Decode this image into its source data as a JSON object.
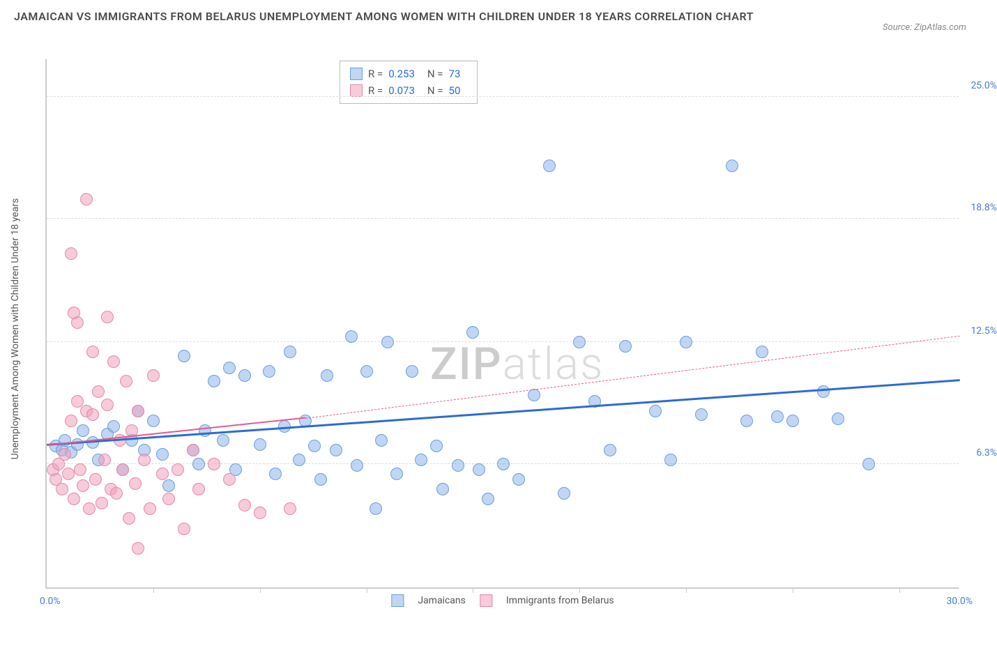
{
  "title": "JAMAICAN VS IMMIGRANTS FROM BELARUS UNEMPLOYMENT AMONG WOMEN WITH CHILDREN UNDER 18 YEARS CORRELATION CHART",
  "source": "Source: ZipAtlas.com",
  "watermark": {
    "part1": "ZIP",
    "part2": "atlas"
  },
  "chart": {
    "type": "scatter",
    "ylabel": "Unemployment Among Women with Children Under 18 years",
    "xlim": [
      0,
      30
    ],
    "ylim": [
      0,
      27
    ],
    "yticks": [
      {
        "v": 6.3,
        "label": "6.3%"
      },
      {
        "v": 12.5,
        "label": "12.5%"
      },
      {
        "v": 18.8,
        "label": "18.8%"
      },
      {
        "v": 25.0,
        "label": "25.0%"
      }
    ],
    "xticks_marks": [
      3.5,
      7,
      10.5,
      14,
      17.5,
      21,
      24.5,
      28
    ],
    "xtick_min": "0.0%",
    "xtick_max": "30.0%",
    "background_color": "#ffffff",
    "grid_color": "#dddddd",
    "marker_radius": 9,
    "series": [
      {
        "name": "Jamaicans",
        "fill": "rgba(140,180,235,0.55)",
        "stroke": "#6a9fd8",
        "R": "0.253",
        "N": "73",
        "trend": {
          "x1": 0,
          "y1": 7.2,
          "x2": 30,
          "y2": 10.5,
          "color": "#2b6cd4",
          "width": 3,
          "dash": "none"
        },
        "trend_ext": null,
        "points": [
          [
            0.3,
            7.2
          ],
          [
            0.5,
            7.0
          ],
          [
            0.6,
            7.5
          ],
          [
            0.8,
            6.9
          ],
          [
            1.0,
            7.3
          ],
          [
            1.2,
            8.0
          ],
          [
            1.5,
            7.4
          ],
          [
            1.7,
            6.5
          ],
          [
            2.0,
            7.8
          ],
          [
            2.2,
            8.2
          ],
          [
            2.5,
            6.0
          ],
          [
            2.8,
            7.5
          ],
          [
            3.0,
            9.0
          ],
          [
            3.2,
            7.0
          ],
          [
            3.5,
            8.5
          ],
          [
            3.8,
            6.8
          ],
          [
            4.0,
            5.2
          ],
          [
            4.5,
            11.8
          ],
          [
            4.8,
            7.0
          ],
          [
            5.0,
            6.3
          ],
          [
            5.2,
            8.0
          ],
          [
            5.5,
            10.5
          ],
          [
            5.8,
            7.5
          ],
          [
            6.0,
            11.2
          ],
          [
            6.2,
            6.0
          ],
          [
            6.5,
            10.8
          ],
          [
            7.0,
            7.3
          ],
          [
            7.3,
            11.0
          ],
          [
            7.5,
            5.8
          ],
          [
            7.8,
            8.2
          ],
          [
            8.0,
            12.0
          ],
          [
            8.3,
            6.5
          ],
          [
            8.5,
            8.5
          ],
          [
            8.8,
            7.2
          ],
          [
            9.0,
            5.5
          ],
          [
            9.2,
            10.8
          ],
          [
            9.5,
            7.0
          ],
          [
            10.0,
            12.8
          ],
          [
            10.2,
            6.2
          ],
          [
            10.5,
            11.0
          ],
          [
            10.8,
            4.0
          ],
          [
            11.0,
            7.5
          ],
          [
            11.2,
            12.5
          ],
          [
            11.5,
            5.8
          ],
          [
            12.0,
            11.0
          ],
          [
            12.3,
            6.5
          ],
          [
            12.8,
            7.2
          ],
          [
            13.0,
            5.0
          ],
          [
            13.5,
            6.2
          ],
          [
            14.0,
            13.0
          ],
          [
            14.2,
            6.0
          ],
          [
            14.5,
            4.5
          ],
          [
            15.0,
            6.3
          ],
          [
            15.5,
            5.5
          ],
          [
            16.0,
            9.8
          ],
          [
            16.5,
            21.5
          ],
          [
            17.0,
            4.8
          ],
          [
            17.5,
            12.5
          ],
          [
            18.0,
            9.5
          ],
          [
            18.5,
            7.0
          ],
          [
            19.0,
            12.3
          ],
          [
            20.0,
            9.0
          ],
          [
            20.5,
            6.5
          ],
          [
            21.0,
            12.5
          ],
          [
            21.5,
            8.8
          ],
          [
            22.5,
            21.5
          ],
          [
            23.0,
            8.5
          ],
          [
            23.5,
            12.0
          ],
          [
            24.0,
            8.7
          ],
          [
            24.5,
            8.5
          ],
          [
            25.5,
            10.0
          ],
          [
            27.0,
            6.3
          ],
          [
            26.0,
            8.6
          ]
        ]
      },
      {
        "name": "Immigrants from Belarus",
        "fill": "rgba(240,160,185,0.55)",
        "stroke": "#e28aa8",
        "R": "0.073",
        "N": "50",
        "trend": {
          "x1": 0,
          "y1": 7.2,
          "x2": 8.5,
          "y2": 8.6,
          "color": "#e55a8a",
          "width": 2,
          "dash": "none"
        },
        "trend_ext": {
          "x1": 8.5,
          "y1": 8.6,
          "x2": 30,
          "y2": 12.8,
          "color": "#e55a8a",
          "width": 1,
          "dash": "4,4"
        },
        "points": [
          [
            0.2,
            6.0
          ],
          [
            0.3,
            5.5
          ],
          [
            0.4,
            6.3
          ],
          [
            0.5,
            5.0
          ],
          [
            0.6,
            6.8
          ],
          [
            0.7,
            5.8
          ],
          [
            0.8,
            8.5
          ],
          [
            0.9,
            4.5
          ],
          [
            1.0,
            9.5
          ],
          [
            1.1,
            6.0
          ],
          [
            1.2,
            5.2
          ],
          [
            1.3,
            9.0
          ],
          [
            1.4,
            4.0
          ],
          [
            1.5,
            8.8
          ],
          [
            1.6,
            5.5
          ],
          [
            1.7,
            10.0
          ],
          [
            1.8,
            4.3
          ],
          [
            1.9,
            6.5
          ],
          [
            2.0,
            9.3
          ],
          [
            2.1,
            5.0
          ],
          [
            2.2,
            11.5
          ],
          [
            2.3,
            4.8
          ],
          [
            2.4,
            7.5
          ],
          [
            2.5,
            6.0
          ],
          [
            2.6,
            10.5
          ],
          [
            2.7,
            3.5
          ],
          [
            2.8,
            8.0
          ],
          [
            2.9,
            5.3
          ],
          [
            3.0,
            9.0
          ],
          [
            0.8,
            17.0
          ],
          [
            3.2,
            6.5
          ],
          [
            3.4,
            4.0
          ],
          [
            3.5,
            10.8
          ],
          [
            1.0,
            13.5
          ],
          [
            3.8,
            5.8
          ],
          [
            4.0,
            4.5
          ],
          [
            1.3,
            19.8
          ],
          [
            4.3,
            6.0
          ],
          [
            0.9,
            14.0
          ],
          [
            4.5,
            3.0
          ],
          [
            4.8,
            7.0
          ],
          [
            1.5,
            12.0
          ],
          [
            5.0,
            5.0
          ],
          [
            2.0,
            13.8
          ],
          [
            5.5,
            6.3
          ],
          [
            3.0,
            2.0
          ],
          [
            6.0,
            5.5
          ],
          [
            6.5,
            4.2
          ],
          [
            7.0,
            3.8
          ],
          [
            8.0,
            4.0
          ]
        ]
      }
    ],
    "legend": {
      "series1": "Jamaicans",
      "series2": "Immigrants from Belarus",
      "swatch1_fill": "rgba(140,180,235,0.55)",
      "swatch1_stroke": "#6a9fd8",
      "swatch2_fill": "rgba(240,160,185,0.55)",
      "swatch2_stroke": "#e28aa8"
    }
  }
}
